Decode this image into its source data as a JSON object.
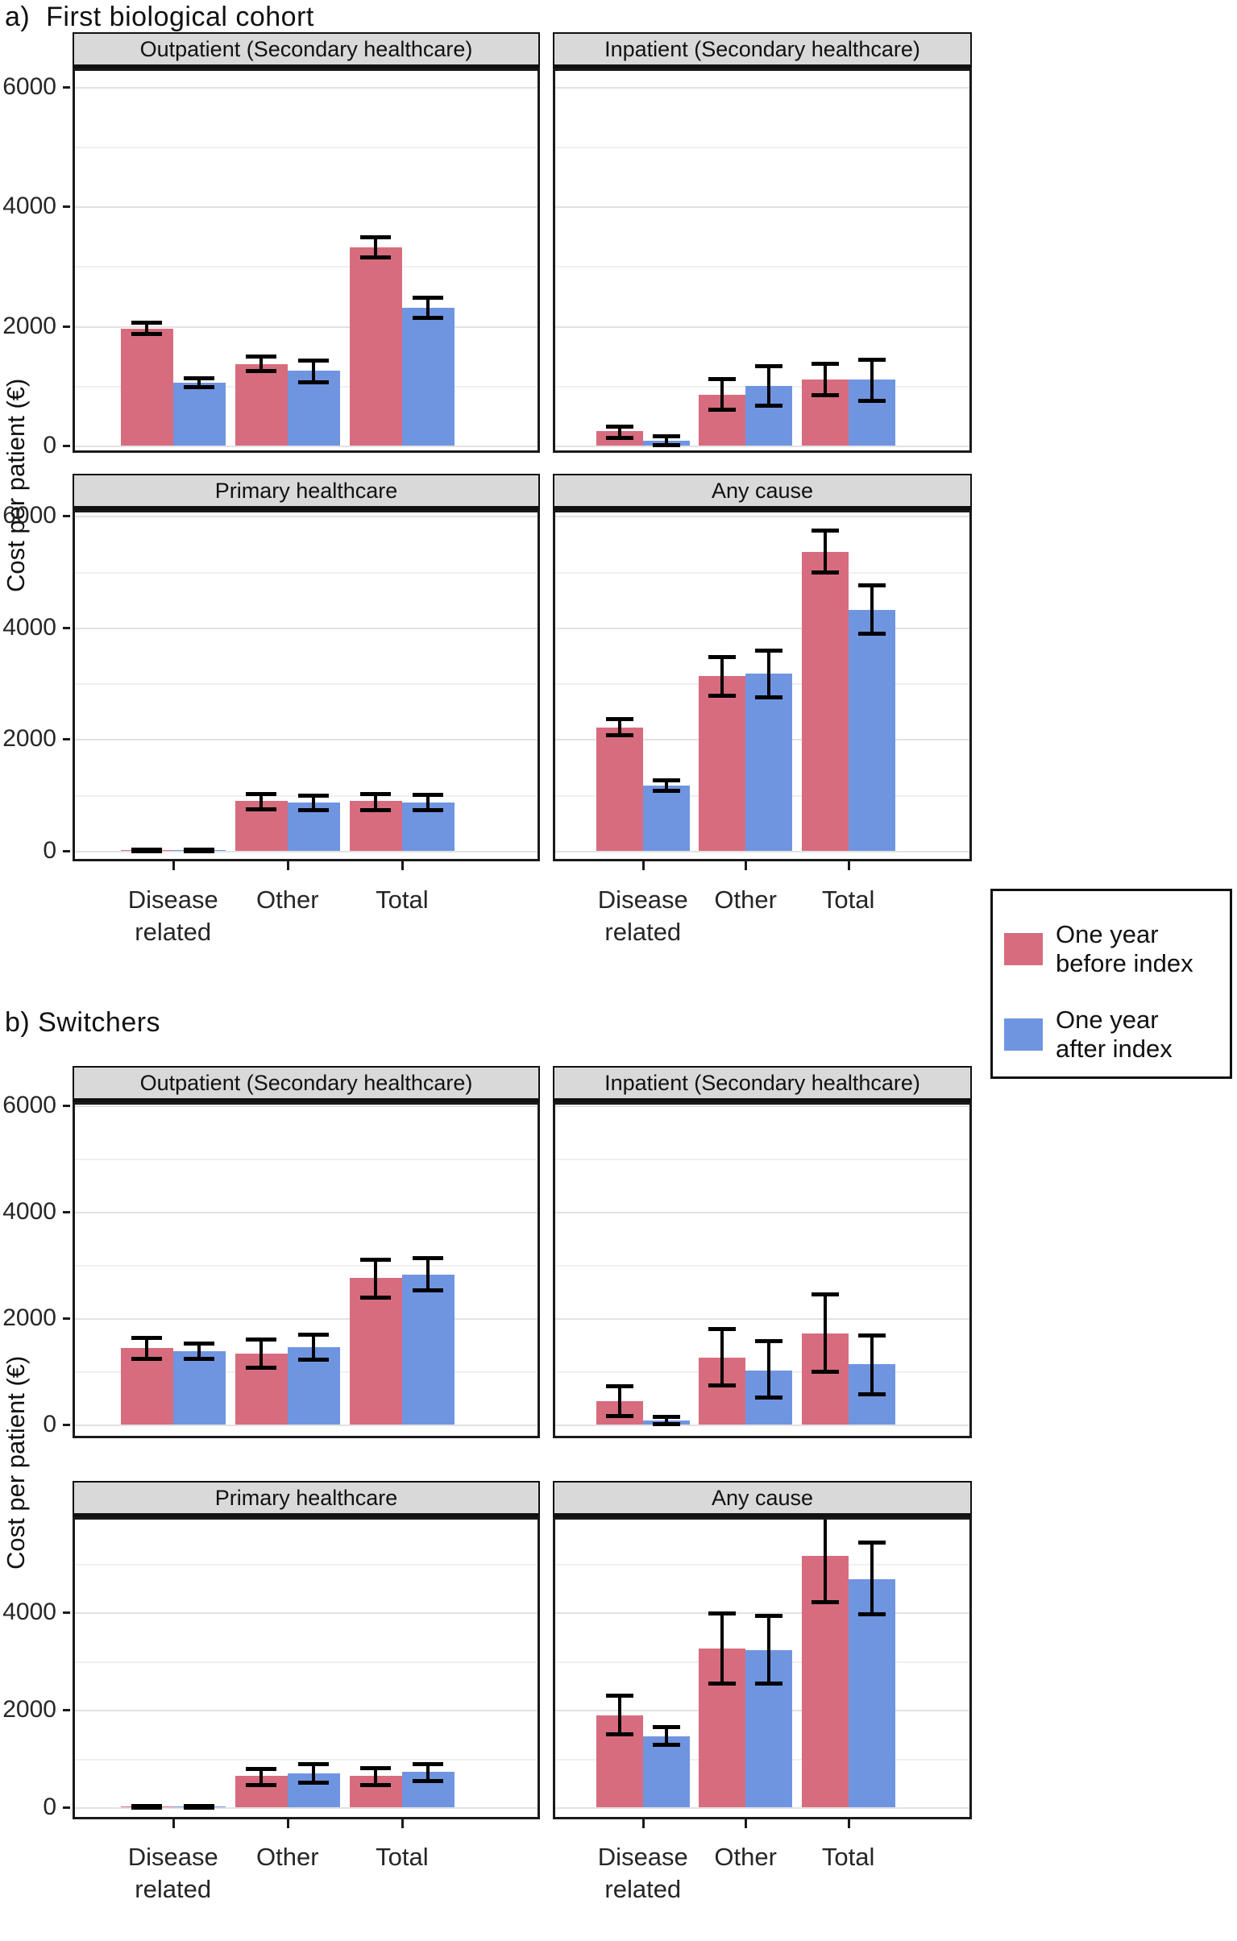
{
  "page": {
    "background": "#ffffff"
  },
  "colors": {
    "before": "#d76c7e",
    "after": "#6f95e1",
    "axis_text": "#262626",
    "strip_bg": "#d9d9d9",
    "grid_major": "#e2e2e2",
    "grid_minor": "#f0f0f0",
    "error_bar": "#000000"
  },
  "legend": {
    "items": [
      {
        "color_key": "before",
        "lines": [
          "One year",
          "before index"
        ]
      },
      {
        "color_key": "after",
        "lines": [
          "One year",
          "after index"
        ]
      }
    ]
  },
  "y_axis": {
    "title": "Cost per patient (€)",
    "ticks": [
      0,
      2000,
      4000,
      6000
    ],
    "grid_interval": 1000,
    "limit": [
      0,
      6400
    ]
  },
  "x_axis": {
    "categories": [
      "Disease related",
      "Other",
      "Total"
    ],
    "category_lines": [
      [
        "Disease",
        "related"
      ],
      [
        "Other"
      ],
      [
        "Total"
      ]
    ]
  },
  "chart_data": [
    {
      "type": "bar",
      "title": "a)  First biological cohort",
      "ylabel": "Cost per patient (€)",
      "categories": [
        "Disease related",
        "Other",
        "Total"
      ],
      "ylim": [
        0,
        6400
      ],
      "yticks": [
        0,
        2000,
        4000,
        6000
      ],
      "grid": true,
      "legend_position": "right",
      "error_bars": "95% CI",
      "facets": [
        {
          "title": "Outpatient (Secondary healthcare)",
          "series": [
            {
              "name": "One year before index",
              "values": [
                1950,
                1360,
                3320
              ],
              "ci_low": [
                1880,
                1250,
                3160
              ],
              "ci_high": [
                2060,
                1500,
                3490
              ]
            },
            {
              "name": "One year after index",
              "values": [
                1050,
                1250,
                2300
              ],
              "ci_low": [
                980,
                1070,
                2140
              ],
              "ci_high": [
                1130,
                1430,
                2480
              ]
            }
          ]
        },
        {
          "title": "Inpatient (Secondary healthcare)",
          "series": [
            {
              "name": "One year before index",
              "values": [
                240,
                850,
                1110
              ],
              "ci_low": [
                140,
                600,
                850
              ],
              "ci_high": [
                320,
                1120,
                1370
              ]
            },
            {
              "name": "One year after index",
              "values": [
                75,
                1000,
                1110
              ],
              "ci_low": [
                10,
                680,
                760
              ],
              "ci_high": [
                155,
                1330,
                1440
              ]
            }
          ]
        },
        {
          "title": "Primary healthcare",
          "series": [
            {
              "name": "One year before index",
              "values": [
                15,
                890,
                900
              ],
              "ci_low": [
                5,
                750,
                740
              ],
              "ci_high": [
                30,
                1030,
                1030
              ]
            },
            {
              "name": "One year after index",
              "values": [
                10,
                860,
                870
              ],
              "ci_low": [
                0,
                730,
                740
              ],
              "ci_high": [
                25,
                1000,
                1010
              ]
            }
          ]
        },
        {
          "title": "Any cause",
          "series": [
            {
              "name": "One year before index",
              "values": [
                2210,
                3130,
                5350
              ],
              "ci_low": [
                2080,
                2790,
                4990
              ],
              "ci_high": [
                2360,
                3480,
                5750
              ]
            },
            {
              "name": "One year after index",
              "values": [
                1170,
                3170,
                4310
              ],
              "ci_low": [
                1080,
                2760,
                3890
              ],
              "ci_high": [
                1270,
                3590,
                4760
              ]
            }
          ]
        }
      ]
    },
    {
      "type": "bar",
      "title": "b) Switchers",
      "ylabel": "Cost per patient (€)",
      "categories": [
        "Disease related",
        "Other",
        "Total"
      ],
      "ylim": [
        0,
        6400
      ],
      "yticks": [
        0,
        2000,
        4000,
        6000
      ],
      "grid": true,
      "error_bars": "95% CI",
      "facets": [
        {
          "title": "Outpatient (Secondary healthcare)",
          "series": [
            {
              "name": "One year before index",
              "values": [
                1440,
                1340,
                2750
              ],
              "ci_low": [
                1240,
                1080,
                2400
              ],
              "ci_high": [
                1630,
                1600,
                3110
              ]
            },
            {
              "name": "One year after index",
              "values": [
                1380,
                1460,
                2820
              ],
              "ci_low": [
                1240,
                1220,
                2530
              ],
              "ci_high": [
                1530,
                1700,
                3130
              ]
            }
          ]
        },
        {
          "title": "Inpatient (Secondary healthcare)",
          "series": [
            {
              "name": "One year before index",
              "values": [
                440,
                1260,
                1710
              ],
              "ci_low": [
                170,
                740,
                1000
              ],
              "ci_high": [
                720,
                1810,
                2450
              ]
            },
            {
              "name": "One year after index",
              "values": [
                70,
                1020,
                1130
              ],
              "ci_low": [
                10,
                520,
                580
              ],
              "ci_high": [
                150,
                1570,
                1680
              ]
            }
          ]
        },
        {
          "title": "Primary healthcare",
          "series": [
            {
              "name": "One year before index",
              "values": [
                15,
                640,
                650
              ],
              "ci_low": [
                0,
                460,
                470
              ],
              "ci_high": [
                30,
                800,
                810
              ]
            },
            {
              "name": "One year after index",
              "values": [
                10,
                700,
                720
              ],
              "ci_low": [
                0,
                520,
                540
              ],
              "ci_high": [
                25,
                890,
                900
              ]
            }
          ]
        },
        {
          "title": "Any cause",
          "series": [
            {
              "name": "One year before index",
              "values": [
                1890,
                3250,
                5150
              ],
              "ci_low": [
                1510,
                2550,
                4210
              ],
              "ci_high": [
                2300,
                3980,
                6110
              ]
            },
            {
              "name": "One year after index",
              "values": [
                1460,
                3220,
                4680
              ],
              "ci_low": [
                1290,
                2540,
                3960
              ],
              "ci_high": [
                1650,
                3930,
                5440
              ]
            }
          ]
        }
      ]
    }
  ]
}
